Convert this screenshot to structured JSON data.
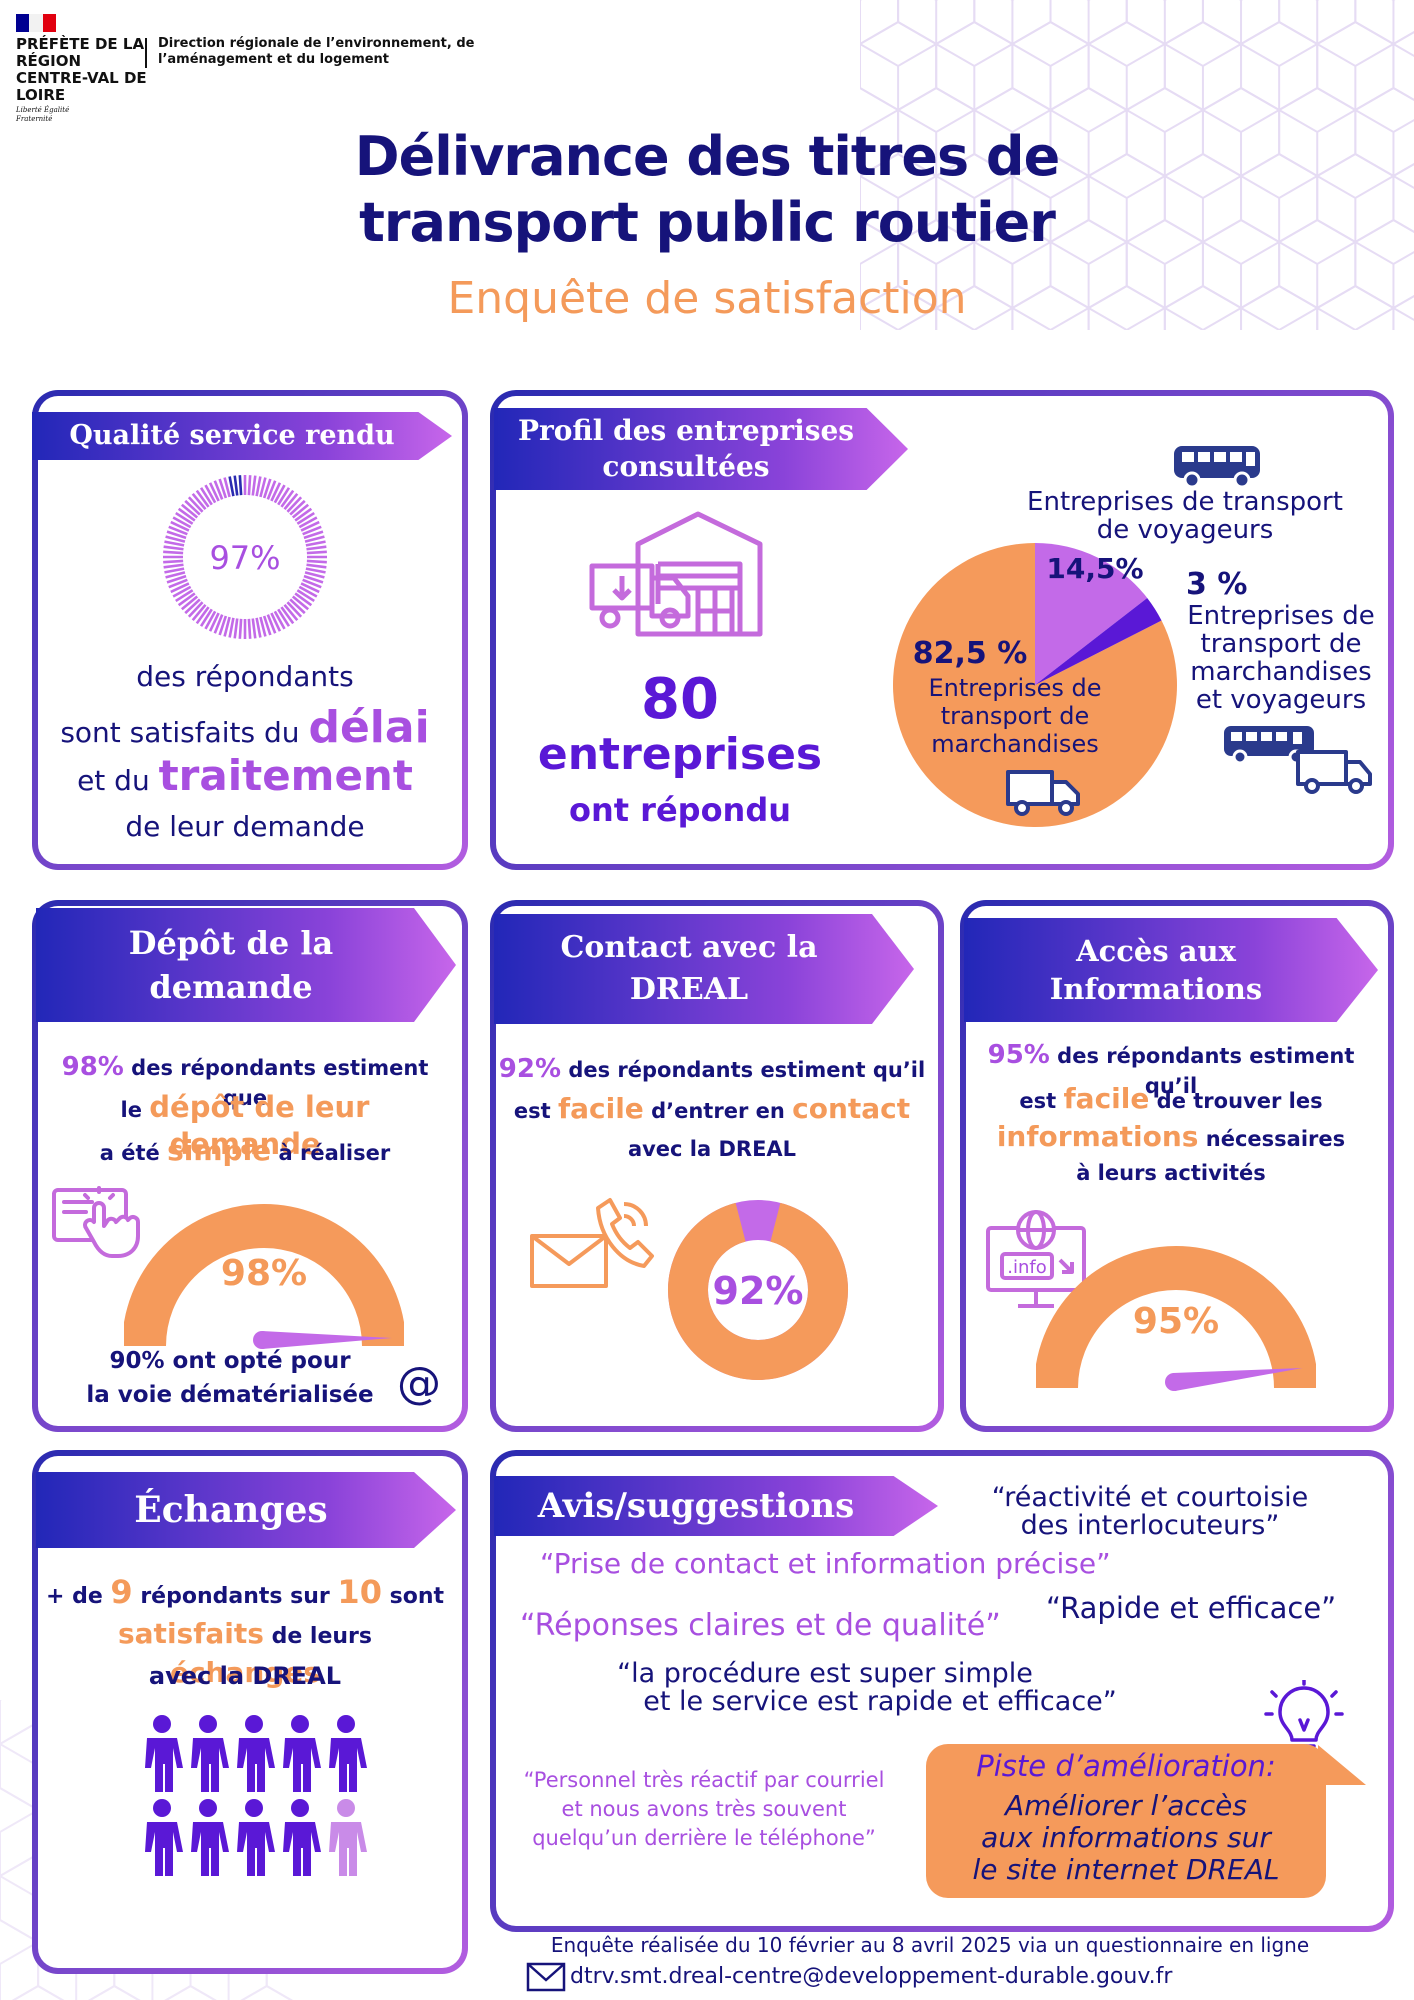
{
  "header": {
    "prefecture": "PRÉFÈTE DE LA RÉGION CENTRE-VAL DE LOIRE",
    "motto": "Liberté Égalité Fraternité",
    "direction": "Direction régionale de l’environnement, de l’aménagement et du logement",
    "title_line1": "Délivrance des titres de",
    "title_line2": "transport public routier",
    "subtitle": "Enquête de satisfaction",
    "flag_colors": [
      "#000091",
      "#ffffff",
      "#e1000f"
    ]
  },
  "qualite": {
    "heading": "Qualité service rendu",
    "percent": "97%",
    "value": 0.97,
    "line1": "des répondants",
    "line2a": "sont satisfaits du",
    "line2b": "délai",
    "line3a": "et du",
    "line3b": "traitement",
    "line4": "de leur demande"
  },
  "profil": {
    "heading_line1": "Profil des entreprises",
    "heading_line2": "consultées",
    "count": "80",
    "count_label": "entreprises",
    "count_suffix": "ont répondu",
    "voyageurs_label_1": "Entreprises de transport",
    "voyageurs_label_2": "de voyageurs",
    "mixte_pct": "3 %",
    "mixte_label_1": "Entreprises de",
    "mixte_label_2": "transport de",
    "mixte_label_3": "marchandises",
    "mixte_label_4": "et voyageurs",
    "marchandises_pct": "82,5 %",
    "marchandises_label_1": "Entreprises de",
    "marchandises_label_2": "transport de",
    "marchandises_label_3": "marchandises",
    "voyageurs_pct": "14,5%"
  },
  "chart_data": {
    "type": "pie",
    "values": [
      82.5,
      14.5,
      3
    ],
    "labels": [
      "Entreprises de transport de marchandises",
      "Entreprises de transport de voyageurs",
      "Entreprises de transport de marchandises et voyageurs"
    ],
    "colors": [
      "#f59a5b",
      "#c36ae8",
      "#5a18d6"
    ]
  },
  "depot": {
    "heading_line1": "Dépôt de la",
    "heading_line2": "demande",
    "l1a": "98%",
    "l1b": " des répondants estiment que",
    "l2a": "le ",
    "l2b": "dépôt de leur demande",
    "l3a": "a été ",
    "l3b": "simple",
    "l3c": " à réaliser",
    "gauge_label": "98%",
    "gauge_value": 0.98,
    "foot1": "90% ont opté pour",
    "foot2": "la voie dématérialisée",
    "at": "@"
  },
  "contact": {
    "heading_line1": "Contact avec la",
    "heading_line2": "DREAL",
    "l1a": "92%",
    "l1b": " des répondants estiment qu’il",
    "l2a": "est ",
    "l2b": "facile",
    "l2c": " d’entrer en ",
    "l2d": "contact",
    "l3": "avec la DREAL",
    "donut_label": "92%",
    "donut_value": 0.92
  },
  "acces": {
    "heading_line1": "Accès aux",
    "heading_line2": "Informations",
    "l1a": "95%",
    "l1b": " des répondants estiment qu’il",
    "l2a": "est ",
    "l2b": "facile",
    "l2c": " de trouver les",
    "l3a": "informations",
    "l3b": " nécessaires",
    "l4": "à leurs activités",
    "gauge_label": "95%",
    "gauge_value": 0.95,
    "info_tag": ".info"
  },
  "echanges": {
    "heading": "Échanges",
    "l1a": "+ de ",
    "l1b": "9",
    "l1c": " répondants sur ",
    "l1d": "10",
    "l1e": " sont",
    "l2a": "satisfaits",
    "l2b": " de leurs ",
    "l2c": "échanges",
    "l3": "avec la DREAL",
    "satisfied": 9,
    "total": 10
  },
  "avis": {
    "heading": "Avis/suggestions",
    "q1_line1": "“réactivité et courtoisie",
    "q1_line2": "des interlocuteurs”",
    "q2": "“Prise de contact et information précise”",
    "q3": "“Rapide et efficace”",
    "q4": "“Réponses claires et de qualité”",
    "q5_line1": "“la procédure est super simple",
    "q5_line2": "et le service est rapide et efficace”",
    "q6_line1": "“Personnel très réactif par courriel",
    "q6_line2": "et nous avons très souvent",
    "q6_line3": "quelqu’un derrière le téléphone”",
    "piste_title": "Piste d’amélioration:",
    "piste_line1": "Améliorer l’accès",
    "piste_line2": "aux informations sur",
    "piste_line3": "le site internet DREAL"
  },
  "footer": {
    "line1": "Enquête réalisée du 10 février au 8 avril 2025 via un questionnaire en ligne",
    "email": "dtrv.smt.dreal-centre@developpement-durable.gouv.fr"
  },
  "colors": {
    "navy": "#16137a",
    "orange": "#f59a5b",
    "violet": "#a84fe0",
    "purple": "#5a18d6",
    "lilac": "#c36ae8"
  }
}
